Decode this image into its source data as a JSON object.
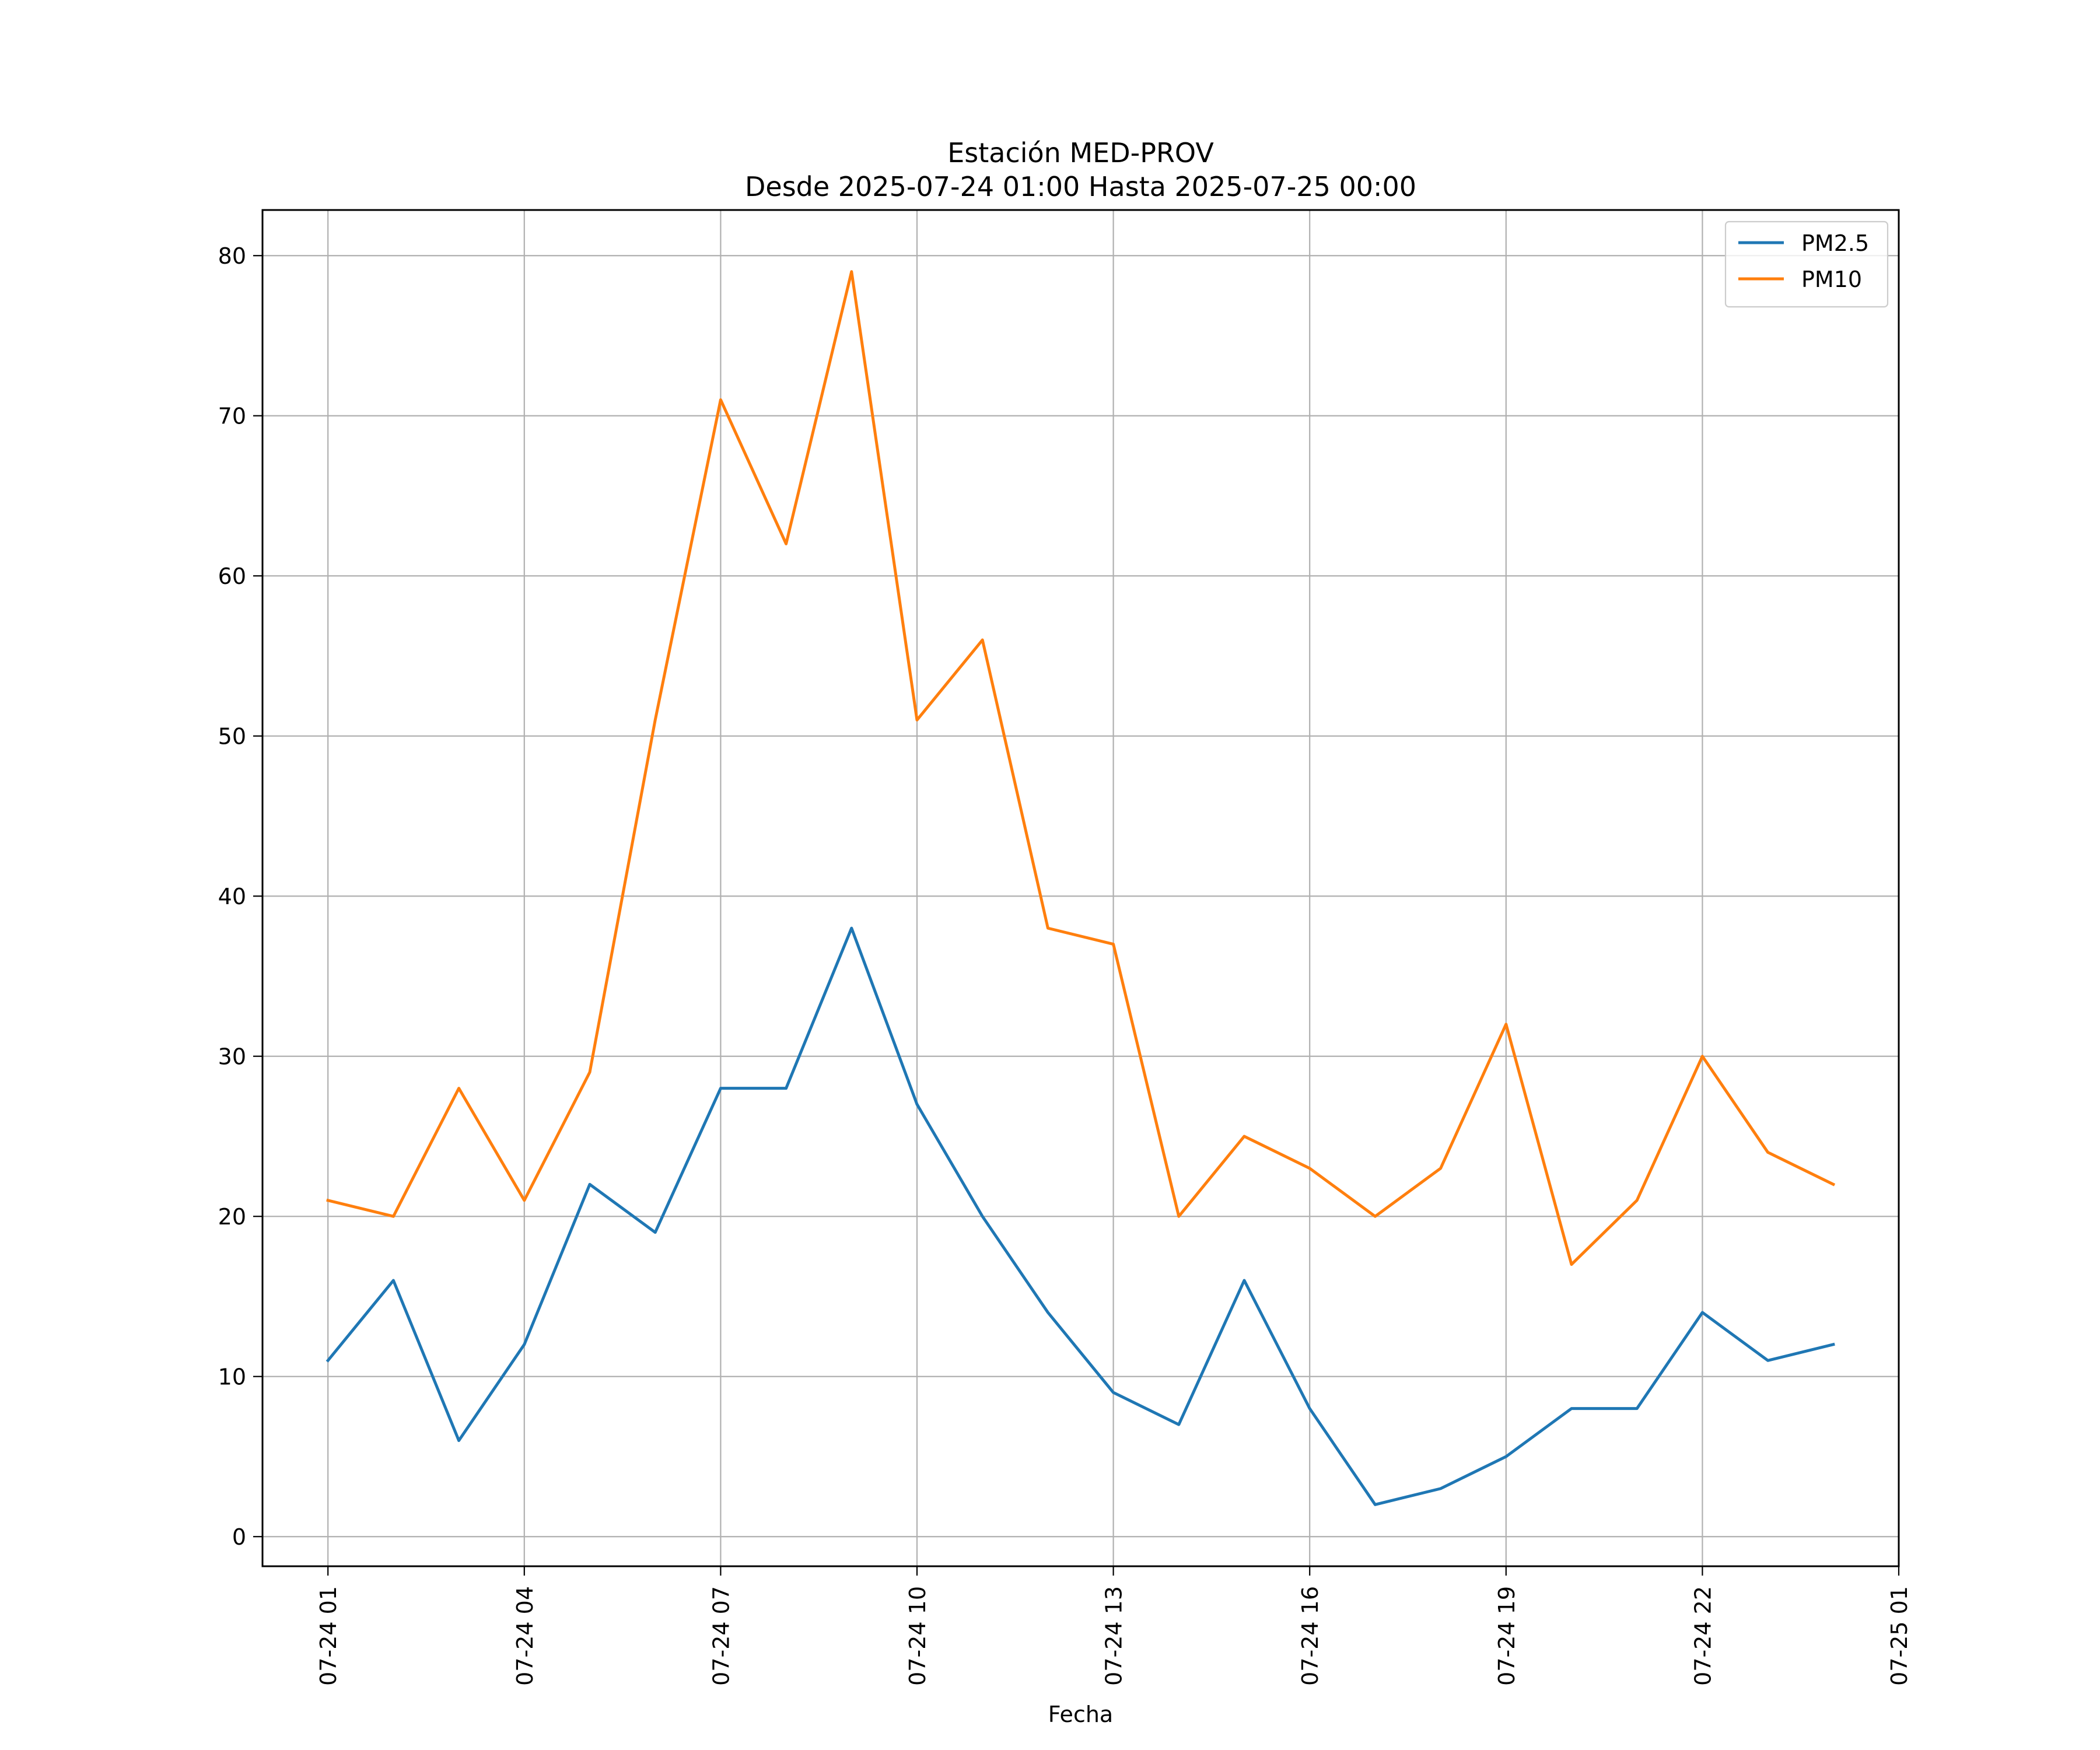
{
  "chart_data": {
    "type": "line",
    "title": "Estación MED-PROV",
    "subtitle": "Desde 2025-07-24 01:00 Hasta 2025-07-25 00:00",
    "xlabel": "Fecha",
    "ylabel": "",
    "x": [
      "2025-07-24 01:00",
      "2025-07-24 02:00",
      "2025-07-24 03:00",
      "2025-07-24 04:00",
      "2025-07-24 05:00",
      "2025-07-24 06:00",
      "2025-07-24 07:00",
      "2025-07-24 08:00",
      "2025-07-24 09:00",
      "2025-07-24 10:00",
      "2025-07-24 11:00",
      "2025-07-24 12:00",
      "2025-07-24 13:00",
      "2025-07-24 14:00",
      "2025-07-24 15:00",
      "2025-07-24 16:00",
      "2025-07-24 17:00",
      "2025-07-24 18:00",
      "2025-07-24 19:00",
      "2025-07-24 20:00",
      "2025-07-24 21:00",
      "2025-07-24 22:00",
      "2025-07-24 23:00",
      "2025-07-25 00:00"
    ],
    "series": [
      {
        "name": "PM2.5",
        "color": "#1f77b4",
        "values": [
          11,
          16,
          6,
          12,
          22,
          19,
          28,
          28,
          38,
          27,
          20,
          14,
          9,
          7,
          16,
          8,
          2,
          3,
          5,
          8,
          8,
          14,
          11,
          12
        ]
      },
      {
        "name": "PM10",
        "color": "#ff7f0e",
        "values": [
          21,
          20,
          28,
          21,
          29,
          51,
          71,
          62,
          79,
          51,
          56,
          38,
          37,
          20,
          25,
          23,
          20,
          23,
          32,
          17,
          21,
          30,
          24,
          22
        ]
      }
    ],
    "xticks": [
      {
        "x": "2025-07-24 01:00",
        "label": "07-24 01"
      },
      {
        "x": "2025-07-24 04:00",
        "label": "07-24 04"
      },
      {
        "x": "2025-07-24 07:00",
        "label": "07-24 07"
      },
      {
        "x": "2025-07-24 10:00",
        "label": "07-24 10"
      },
      {
        "x": "2025-07-24 13:00",
        "label": "07-24 13"
      },
      {
        "x": "2025-07-24 16:00",
        "label": "07-24 16"
      },
      {
        "x": "2025-07-24 19:00",
        "label": "07-24 19"
      },
      {
        "x": "2025-07-24 22:00",
        "label": "07-24 22"
      },
      {
        "x": "2025-07-25 01:00",
        "label": "07-25 01"
      }
    ],
    "xlim": [
      "2025-07-24 00:00",
      "2025-07-25 01:00"
    ],
    "yticks": [
      0,
      10,
      20,
      30,
      40,
      50,
      60,
      70,
      80
    ],
    "ylim": [
      -1.85,
      82.85
    ],
    "grid": true,
    "legend": "upper right",
    "colors": {
      "gridline": "#b0b0b0"
    }
  }
}
